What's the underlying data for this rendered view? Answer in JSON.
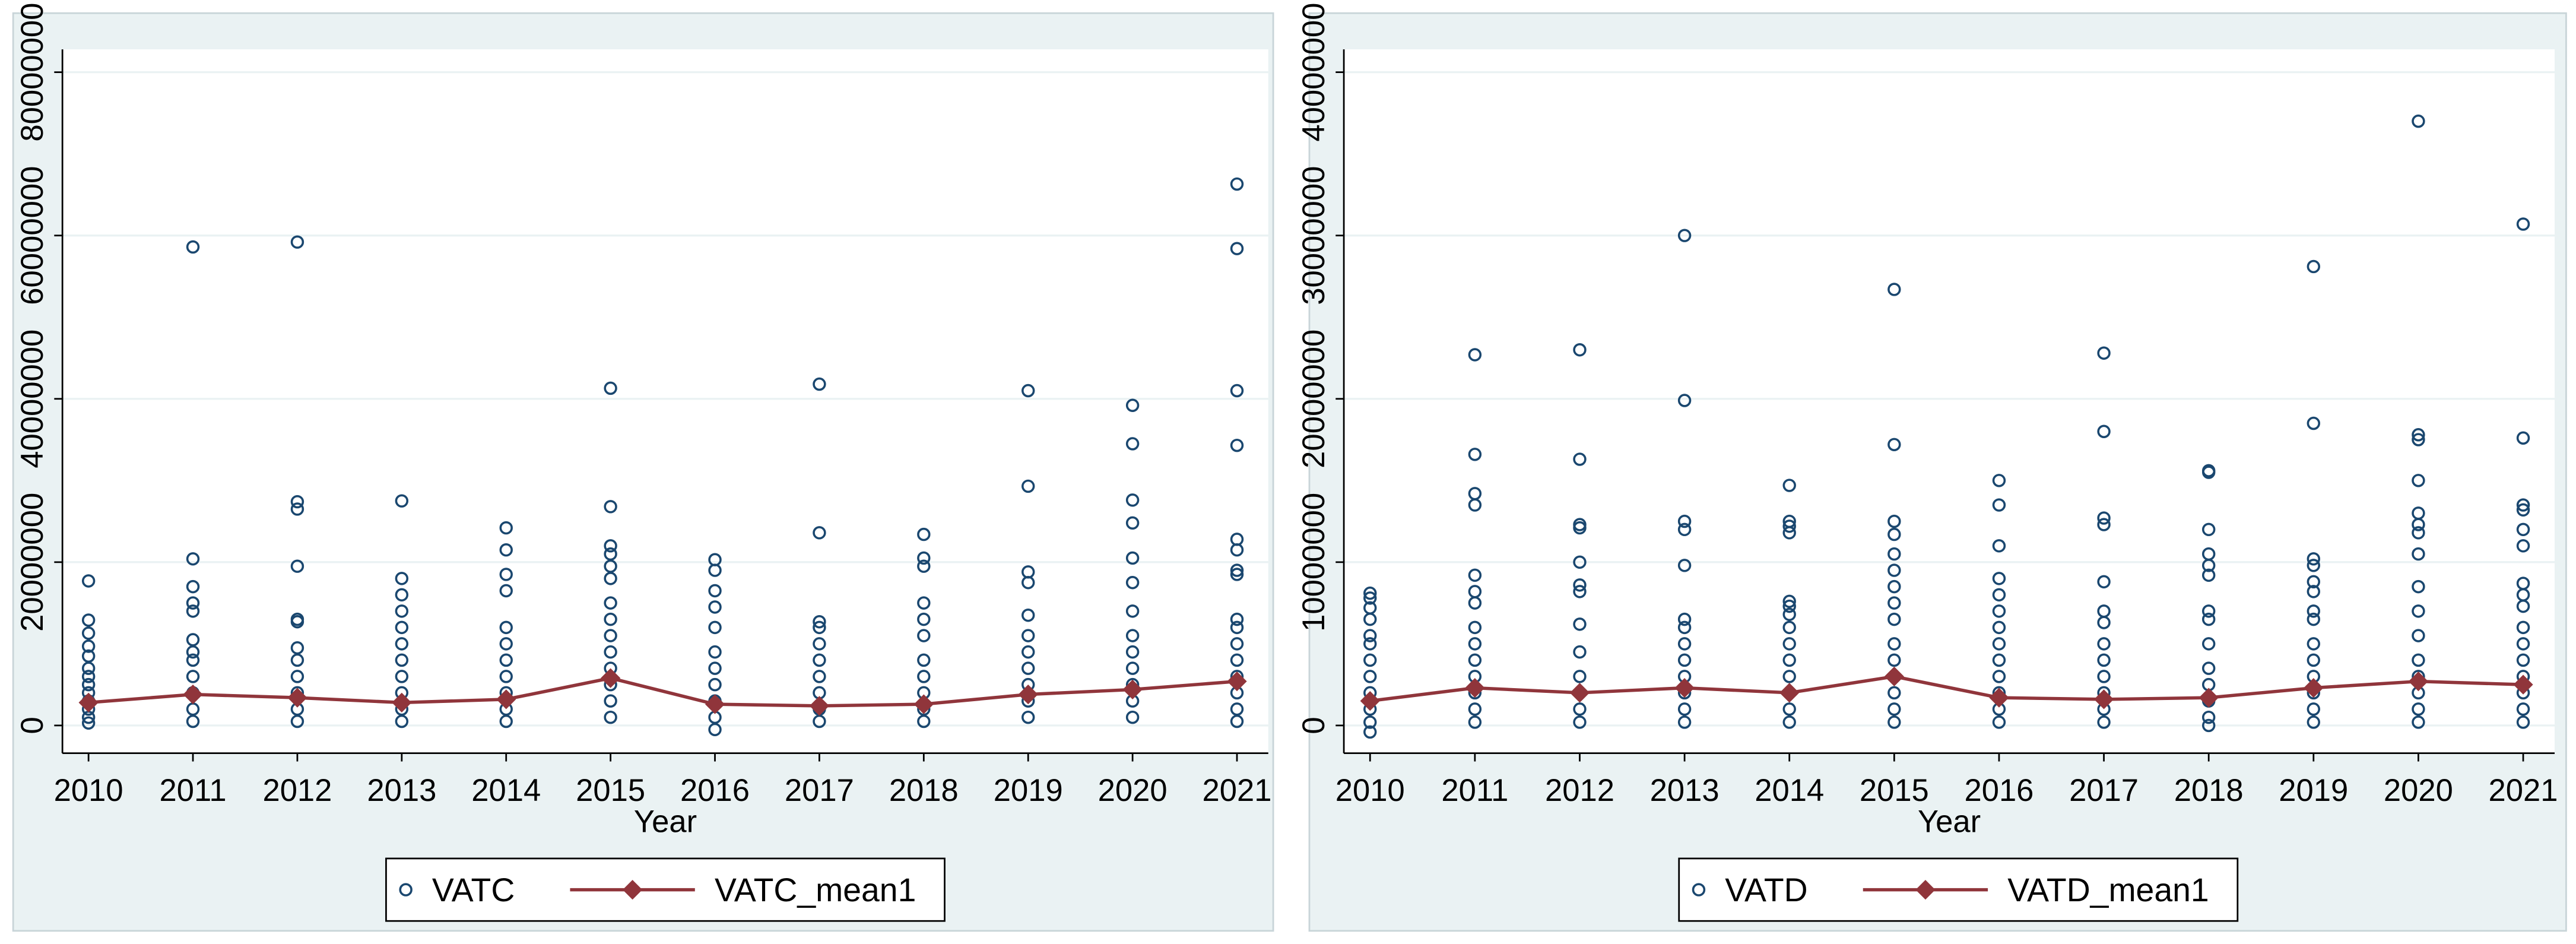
{
  "chart_data": [
    {
      "type": "scatter",
      "x_label": "Year",
      "legend": "bottom",
      "grid": true,
      "x": [
        2010,
        2011,
        2012,
        2013,
        2014,
        2015,
        2016,
        2017,
        2018,
        2019,
        2020,
        2021
      ],
      "xlim": [
        2009.75,
        2021.3
      ],
      "xticks": [
        2010,
        2011,
        2012,
        2013,
        2014,
        2015,
        2016,
        2017,
        2018,
        2019,
        2020,
        2021
      ],
      "ylim": [
        -3400000,
        82800000
      ],
      "yticks": [
        0,
        20000000,
        40000000,
        60000000,
        80000000
      ],
      "series": [
        {
          "name": "VATC",
          "type": "scatter",
          "color": "#1a476f",
          "values": [
            [
              17700000,
              12900000,
              11300000,
              9700000,
              8500000,
              7000000,
              6000000,
              5000000,
              4000000,
              3000000,
              2000000,
              1000000,
              300000
            ],
            [
              58600000,
              20400000,
              17000000,
              15000000,
              14000000,
              10500000,
              9000000,
              8000000,
              6000000,
              4000000,
              2000000,
              500000
            ],
            [
              59200000,
              27400000,
              26500000,
              19500000,
              13000000,
              12700000,
              9500000,
              8000000,
              6000000,
              4000000,
              2000000,
              500000
            ],
            [
              27500000,
              18000000,
              16000000,
              14000000,
              12000000,
              10000000,
              8000000,
              6000000,
              4000000,
              2000000,
              500000
            ],
            [
              24200000,
              21500000,
              18500000,
              16500000,
              12000000,
              10000000,
              8000000,
              6000000,
              4000000,
              2000000,
              500000
            ],
            [
              41300000,
              26800000,
              22000000,
              21000000,
              19500000,
              18000000,
              15000000,
              13000000,
              11000000,
              9000000,
              7000000,
              5000000,
              3000000,
              1000000
            ],
            [
              20300000,
              19000000,
              16500000,
              14500000,
              12000000,
              9000000,
              7000000,
              5000000,
              3000000,
              1000000,
              -500000
            ],
            [
              41800000,
              23600000,
              12700000,
              12000000,
              10000000,
              8000000,
              6000000,
              4000000,
              2000000,
              500000
            ],
            [
              23400000,
              20500000,
              19500000,
              15000000,
              13000000,
              11000000,
              8000000,
              6000000,
              4000000,
              2000000,
              500000
            ],
            [
              41000000,
              29300000,
              18800000,
              17500000,
              13500000,
              11000000,
              9000000,
              7000000,
              5000000,
              3000000,
              1000000
            ],
            [
              39200000,
              34500000,
              27600000,
              24800000,
              20500000,
              17500000,
              14000000,
              11000000,
              9000000,
              7000000,
              5000000,
              3000000,
              1000000
            ],
            [
              66300000,
              58400000,
              41000000,
              34300000,
              22800000,
              21500000,
              19000000,
              18500000,
              13000000,
              12000000,
              10000000,
              8000000,
              6000000,
              4000000,
              2000000,
              500000
            ]
          ]
        },
        {
          "name": "VATC_mean1",
          "type": "line",
          "color": "#90353b",
          "values": [
            2800000,
            3800000,
            3400000,
            2800000,
            3200000,
            5800000,
            2600000,
            2400000,
            2600000,
            3800000,
            4400000,
            5400000
          ]
        }
      ]
    },
    {
      "type": "scatter",
      "x_label": "Year",
      "legend": "bottom",
      "grid": true,
      "x": [
        2010,
        2011,
        2012,
        2013,
        2014,
        2015,
        2016,
        2017,
        2018,
        2019,
        2020,
        2021
      ],
      "xlim": [
        2009.75,
        2021.3
      ],
      "xticks": [
        2010,
        2011,
        2012,
        2013,
        2014,
        2015,
        2016,
        2017,
        2018,
        2019,
        2020,
        2021
      ],
      "ylim": [
        -1700000,
        41400000
      ],
      "yticks": [
        0,
        10000000,
        20000000,
        30000000,
        40000000
      ],
      "series": [
        {
          "name": "VATD",
          "type": "scatter",
          "color": "#1a476f",
          "values": [
            [
              8100000,
              7800000,
              7200000,
              6500000,
              5500000,
              5000000,
              4000000,
              3000000,
              2000000,
              1000000,
              200000,
              -400000
            ],
            [
              22700000,
              16600000,
              14200000,
              13500000,
              9200000,
              8200000,
              7500000,
              6000000,
              5000000,
              4000000,
              3000000,
              2000000,
              1000000,
              200000
            ],
            [
              23000000,
              16300000,
              12300000,
              12100000,
              10000000,
              8600000,
              8200000,
              6200000,
              4500000,
              3000000,
              2000000,
              1000000,
              200000
            ],
            [
              30000000,
              19900000,
              12500000,
              12000000,
              9800000,
              6500000,
              6000000,
              5000000,
              4000000,
              3000000,
              2000000,
              1000000,
              200000
            ],
            [
              14700000,
              12500000,
              12200000,
              11800000,
              7600000,
              7300000,
              6800000,
              6000000,
              5000000,
              4000000,
              3000000,
              2000000,
              1000000,
              200000
            ],
            [
              26700000,
              17200000,
              12500000,
              11700000,
              10500000,
              9500000,
              8500000,
              7500000,
              6500000,
              5000000,
              4000000,
              3000000,
              2000000,
              1000000,
              200000
            ],
            [
              15000000,
              13500000,
              11000000,
              9000000,
              8000000,
              7000000,
              6000000,
              5000000,
              4000000,
              3000000,
              2000000,
              1000000,
              200000
            ],
            [
              22800000,
              18000000,
              12700000,
              12300000,
              8800000,
              7000000,
              6300000,
              5000000,
              4000000,
              3000000,
              2000000,
              1000000,
              200000
            ],
            [
              15600000,
              15500000,
              12000000,
              10500000,
              9800000,
              9200000,
              7000000,
              6500000,
              5000000,
              3500000,
              2500000,
              1500000,
              500000,
              0
            ],
            [
              28100000,
              18500000,
              10200000,
              9800000,
              8800000,
              8200000,
              7000000,
              6500000,
              5000000,
              4000000,
              3000000,
              2000000,
              1000000,
              200000
            ],
            [
              37000000,
              17800000,
              17500000,
              15000000,
              13000000,
              12300000,
              11800000,
              10500000,
              8500000,
              7000000,
              5500000,
              4000000,
              3000000,
              2000000,
              1000000,
              200000
            ],
            [
              30700000,
              17600000,
              13500000,
              13200000,
              12000000,
              11000000,
              8700000,
              8000000,
              7300000,
              6000000,
              5000000,
              4000000,
              3000000,
              2000000,
              1000000,
              200000
            ]
          ]
        },
        {
          "name": "VATD_mean1",
          "type": "line",
          "color": "#90353b",
          "values": [
            1500000,
            2300000,
            2000000,
            2300000,
            2000000,
            3000000,
            1700000,
            1600000,
            1700000,
            2300000,
            2700000,
            2500000
          ]
        }
      ]
    }
  ]
}
